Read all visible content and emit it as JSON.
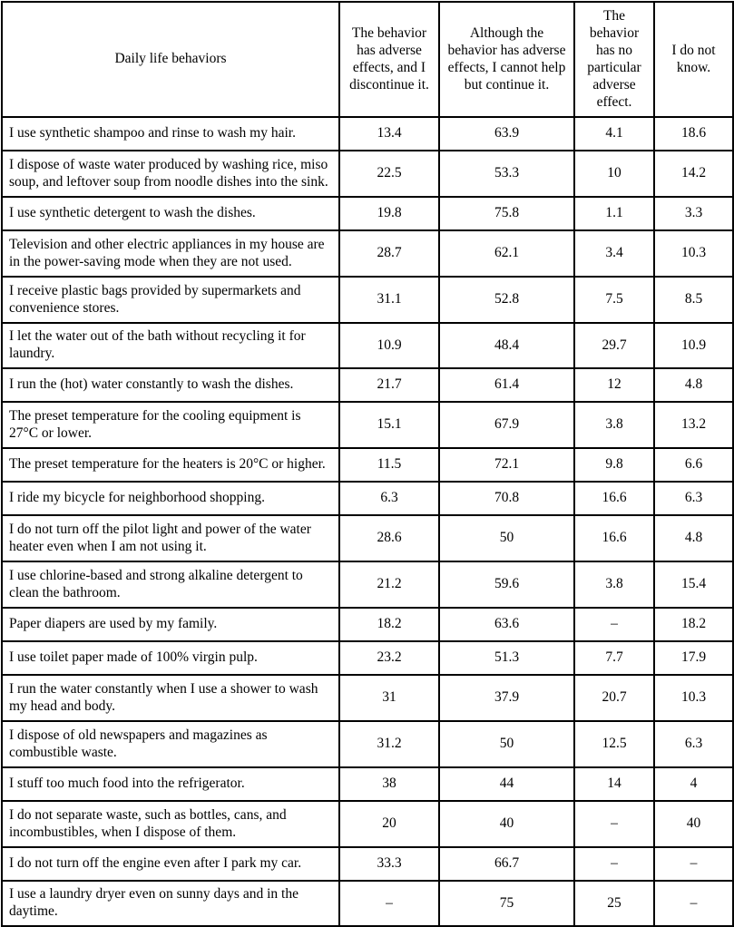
{
  "table": {
    "columns": [
      "Daily life behaviors",
      "The behavior has adverse effects, and I discontinue it.",
      "Although the behavior has adverse effects, I cannot help but continue it.",
      "The behavior has no particular adverse effect.",
      "I do not know."
    ],
    "rows": [
      {
        "behavior": "I use synthetic shampoo and rinse to wash my hair.",
        "values": [
          "13.4",
          "63.9",
          "4.1",
          "18.6"
        ]
      },
      {
        "behavior": "I dispose of waste water produced by washing rice, miso soup, and leftover soup from noodle dishes into the sink.",
        "values": [
          "22.5",
          "53.3",
          "10",
          "14.2"
        ]
      },
      {
        "behavior": "I use synthetic detergent to wash the dishes.",
        "values": [
          "19.8",
          "75.8",
          "1.1",
          "3.3"
        ]
      },
      {
        "behavior": "Television and other electric appliances in my house are in the power-saving mode when they are not used.",
        "values": [
          "28.7",
          "62.1",
          "3.4",
          "10.3"
        ]
      },
      {
        "behavior": "I receive plastic bags provided by supermarkets and convenience stores.",
        "values": [
          "31.1",
          "52.8",
          "7.5",
          "8.5"
        ]
      },
      {
        "behavior": "I let the water out of the bath without recycling it for laundry.",
        "values": [
          "10.9",
          "48.4",
          "29.7",
          "10.9"
        ]
      },
      {
        "behavior": "I run the (hot) water constantly to wash the dishes.",
        "values": [
          "21.7",
          "61.4",
          "12",
          "4.8"
        ]
      },
      {
        "behavior": "The preset temperature for the cooling equipment is 27°C or lower.",
        "values": [
          "15.1",
          "67.9",
          "3.8",
          "13.2"
        ]
      },
      {
        "behavior": "The preset temperature for the heaters is 20°C or higher.",
        "values": [
          "11.5",
          "72.1",
          "9.8",
          "6.6"
        ]
      },
      {
        "behavior": "I ride my bicycle for neighborhood shopping.",
        "values": [
          "6.3",
          "70.8",
          "16.6",
          "6.3"
        ]
      },
      {
        "behavior": "I do not turn off the pilot light and power of the water heater even when I am not using it.",
        "values": [
          "28.6",
          "50",
          "16.6",
          "4.8"
        ]
      },
      {
        "behavior": "I use chlorine-based and strong alkaline detergent to clean the bathroom.",
        "values": [
          "21.2",
          "59.6",
          "3.8",
          "15.4"
        ]
      },
      {
        "behavior": "Paper diapers are used by my family.",
        "values": [
          "18.2",
          "63.6",
          "–",
          "18.2"
        ]
      },
      {
        "behavior": "I use toilet paper made of 100% virgin pulp.",
        "values": [
          "23.2",
          "51.3",
          "7.7",
          "17.9"
        ]
      },
      {
        "behavior": "I run the water constantly when I use a shower to wash my head and body.",
        "values": [
          "31",
          "37.9",
          "20.7",
          "10.3"
        ]
      },
      {
        "behavior": "I dispose of old newspapers and magazines as combustible waste.",
        "values": [
          "31.2",
          "50",
          "12.5",
          "6.3"
        ]
      },
      {
        "behavior": "I stuff too much food into the refrigerator.",
        "values": [
          "38",
          "44",
          "14",
          "4"
        ]
      },
      {
        "behavior": "I do not separate waste, such as bottles, cans, and incombustibles, when I dispose of them.",
        "values": [
          "20",
          "40",
          "–",
          "40"
        ]
      },
      {
        "behavior": "I do not turn off the engine even after I park my car.",
        "values": [
          "33.3",
          "66.7",
          "–",
          "–"
        ]
      },
      {
        "behavior": "I use a laundry dryer even on sunny days and in the daytime.",
        "values": [
          "–",
          "75",
          "25",
          "–"
        ]
      }
    ]
  }
}
